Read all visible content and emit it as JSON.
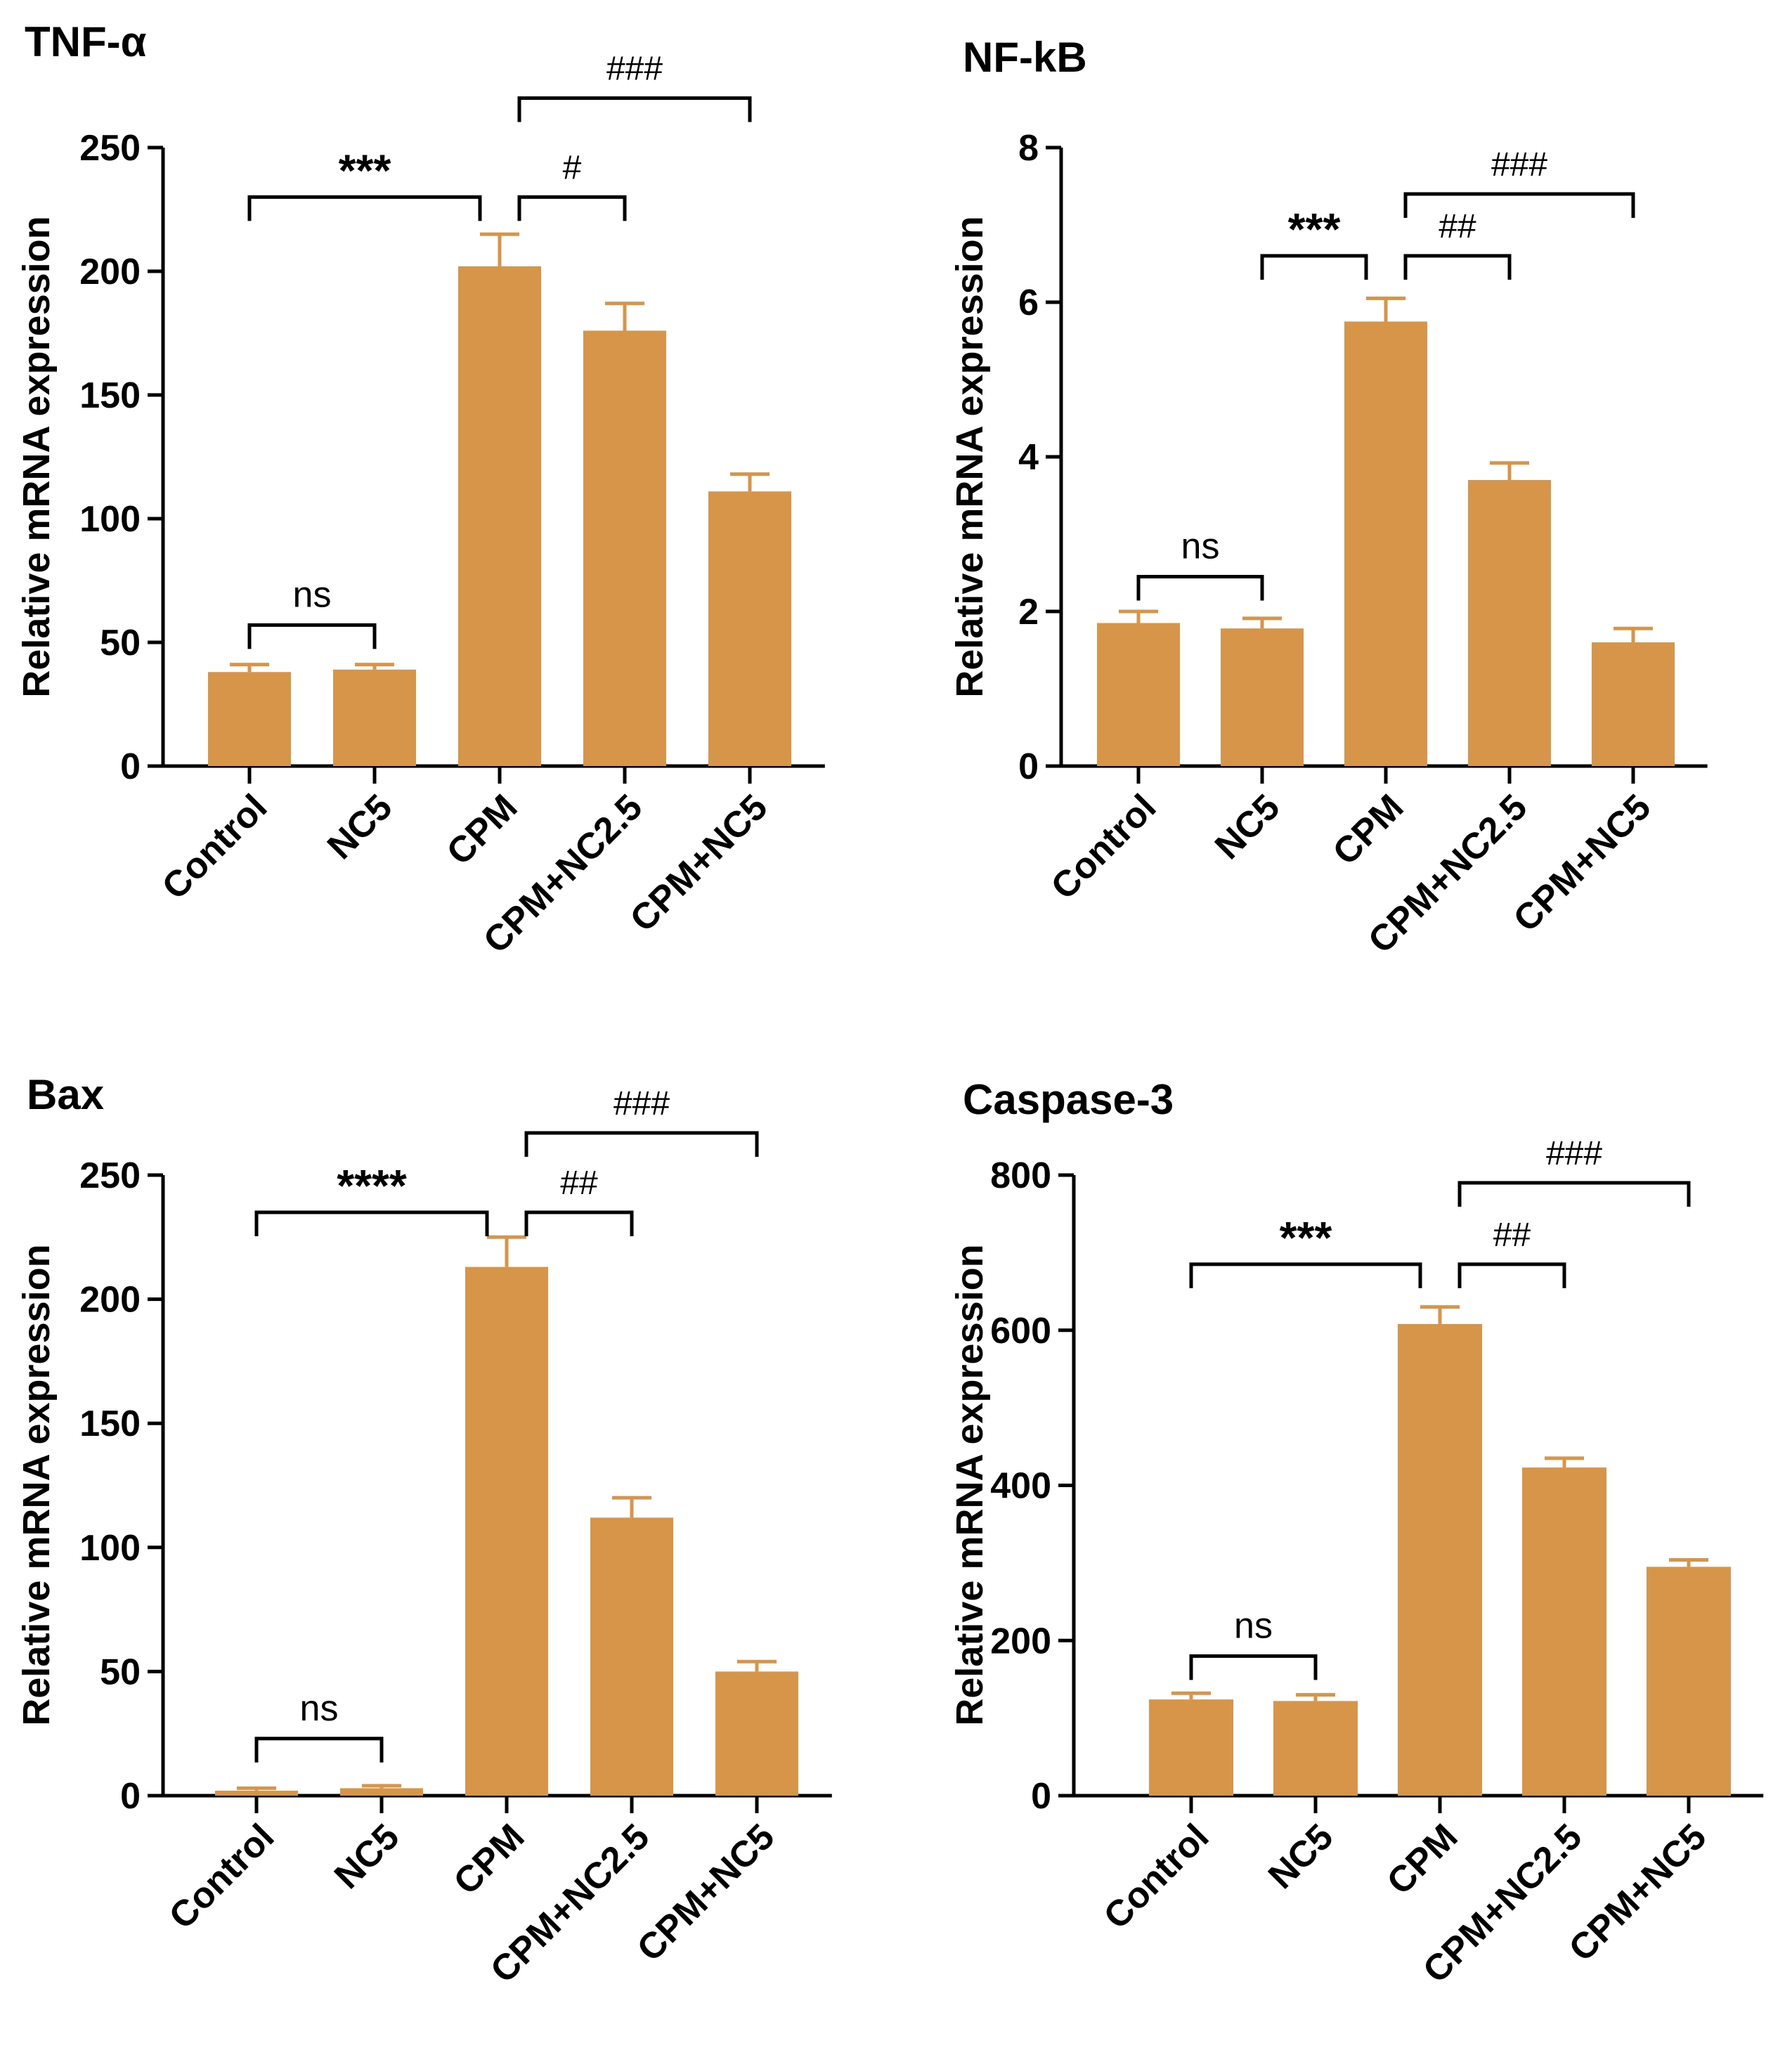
{
  "figure": {
    "bar_color": "#D7954A",
    "axis_color": "#000000"
  },
  "chart_data": [
    {
      "type": "bar",
      "title": "TNF-α",
      "ylabel": "Relative mRNA expression",
      "xlabel": "",
      "categories": [
        "Control",
        "NC5",
        "CPM",
        "CPM+NC2.5",
        "CPM+NC5"
      ],
      "values": [
        38,
        39,
        202,
        176,
        111
      ],
      "errors": [
        3,
        2,
        13,
        11,
        7
      ],
      "ylim": [
        0,
        250
      ],
      "yticks": [
        0,
        50,
        100,
        150,
        200,
        250
      ],
      "annotations": [
        {
          "from": 0,
          "to": 1,
          "level": 57,
          "label": "ns",
          "style": "ns"
        },
        {
          "from": 0,
          "to": 2,
          "level": 230,
          "label": "***",
          "style": "star"
        },
        {
          "from": 2,
          "to": 3,
          "level": 230,
          "label": "#",
          "style": "hash"
        },
        {
          "from": 2,
          "to": 4,
          "level": 270,
          "label": "###",
          "style": "hash"
        }
      ]
    },
    {
      "type": "bar",
      "title": "NF-kB",
      "ylabel": "Relative mRNA expression",
      "xlabel": "",
      "categories": [
        "Control",
        "NC5",
        "CPM",
        "CPM+NC2.5",
        "CPM+NC5"
      ],
      "values": [
        1.85,
        1.78,
        5.75,
        3.7,
        1.6
      ],
      "errors": [
        0.15,
        0.13,
        0.3,
        0.22,
        0.18
      ],
      "ylim": [
        0,
        8
      ],
      "yticks": [
        0,
        2,
        4,
        6,
        8
      ],
      "annotations": [
        {
          "from": 0,
          "to": 1,
          "level": 2.45,
          "label": "ns",
          "style": "ns"
        },
        {
          "from": 1,
          "to": 2,
          "level": 6.6,
          "label": "***",
          "style": "star"
        },
        {
          "from": 2,
          "to": 3,
          "level": 6.6,
          "label": "##",
          "style": "hash"
        },
        {
          "from": 2,
          "to": 4,
          "level": 7.4,
          "label": "###",
          "style": "hash"
        }
      ]
    },
    {
      "type": "bar",
      "title": "Bax",
      "ylabel": "Relative mRNA expression",
      "xlabel": "",
      "categories": [
        "Control",
        "NC5",
        "CPM",
        "CPM+NC2.5",
        "CPM+NC5"
      ],
      "values": [
        2,
        3,
        213,
        112,
        50
      ],
      "errors": [
        1,
        1,
        12,
        8,
        4
      ],
      "ylim": [
        0,
        250
      ],
      "yticks": [
        0,
        50,
        100,
        150,
        200,
        250
      ],
      "annotations": [
        {
          "from": 0,
          "to": 1,
          "level": 23,
          "label": "ns",
          "style": "ns"
        },
        {
          "from": 0,
          "to": 2,
          "level": 235,
          "label": "****",
          "style": "star"
        },
        {
          "from": 2,
          "to": 3,
          "level": 235,
          "label": "##",
          "style": "hash"
        },
        {
          "from": 2,
          "to": 4,
          "level": 267,
          "label": "###",
          "style": "hash"
        }
      ]
    },
    {
      "type": "bar",
      "title": "Caspase-3",
      "ylabel": "Relative mRNA expression",
      "xlabel": "",
      "categories": [
        "Control",
        "NC5",
        "CPM",
        "CPM+NC2.5",
        "CPM+NC5"
      ],
      "values": [
        124,
        122,
        608,
        423,
        295
      ],
      "errors": [
        8,
        8,
        22,
        12,
        9
      ],
      "ylim": [
        0,
        800
      ],
      "yticks": [
        0,
        200,
        400,
        600,
        800
      ],
      "annotations": [
        {
          "from": 0,
          "to": 1,
          "level": 180,
          "label": "ns",
          "style": "ns"
        },
        {
          "from": 0,
          "to": 2,
          "level": 685,
          "label": "***",
          "style": "star"
        },
        {
          "from": 2,
          "to": 3,
          "level": 685,
          "label": "##",
          "style": "hash"
        },
        {
          "from": 2,
          "to": 4,
          "level": 790,
          "label": "###",
          "style": "hash"
        }
      ]
    }
  ]
}
